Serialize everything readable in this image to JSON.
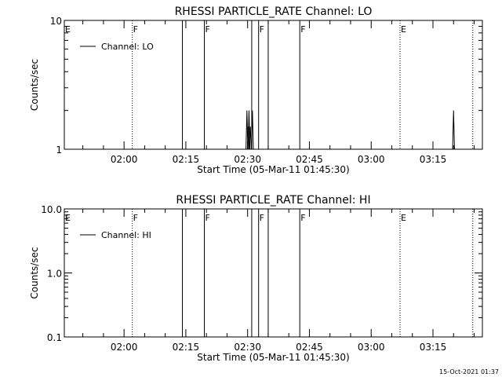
{
  "footer": {
    "timestamp": "15-Oct-2021 01:37"
  },
  "chart_data": [
    {
      "type": "line",
      "title": "RHESSI PARTICLE_RATE Channel: LO",
      "xlabel": "Start Time (05-Mar-11 01:45:30)",
      "ylabel": "Counts/sec",
      "y_scale": "log",
      "ylim": [
        1,
        10
      ],
      "y_ticks": [
        "1",
        "10"
      ],
      "x_start": "01:45:30",
      "x_end": "03:27:00",
      "x_ticks": [
        "02:00",
        "02:15",
        "02:30",
        "02:45",
        "03:00",
        "03:15"
      ],
      "legend": {
        "placement": "top-left",
        "entries": [
          "Channel: LO"
        ]
      },
      "grid": false,
      "markers": [
        {
          "time": "01:45:30",
          "label": "E",
          "style": "none"
        },
        {
          "time": "02:02:00",
          "label": "F",
          "style": "dotted"
        },
        {
          "time": "02:14:10",
          "label": "",
          "style": "solid"
        },
        {
          "time": "02:19:30",
          "label": "F",
          "style": "solid"
        },
        {
          "time": "02:31:00",
          "label": "",
          "style": "solid"
        },
        {
          "time": "02:32:40",
          "label": "F",
          "style": "solid"
        },
        {
          "time": "02:35:00",
          "label": "",
          "style": "solid"
        },
        {
          "time": "02:42:40",
          "label": "F",
          "style": "solid"
        },
        {
          "time": "03:07:00",
          "label": "E",
          "style": "dotted"
        },
        {
          "time": "03:24:40",
          "label": "",
          "style": "dotted"
        }
      ],
      "series": [
        {
          "name": "Channel: LO",
          "spikes": [
            {
              "time": "02:29:50",
              "value": 2
            },
            {
              "time": "02:30:10",
              "value": 1.5
            },
            {
              "time": "02:30:20",
              "value": 2
            },
            {
              "time": "02:30:40",
              "value": 1.5
            },
            {
              "time": "02:31:10",
              "value": 2
            },
            {
              "time": "03:20:00",
              "value": 2
            }
          ]
        }
      ]
    },
    {
      "type": "line",
      "title": "RHESSI PARTICLE_RATE Channel: HI",
      "xlabel": "Start Time (05-Mar-11 01:45:30)",
      "ylabel": "Counts/sec",
      "y_scale": "log",
      "ylim": [
        0.1,
        10
      ],
      "y_ticks": [
        "0.1",
        "1.0",
        "10.0"
      ],
      "x_start": "01:45:30",
      "x_end": "03:27:00",
      "x_ticks": [
        "02:00",
        "02:15",
        "02:30",
        "02:45",
        "03:00",
        "03:15"
      ],
      "legend": {
        "placement": "top-left",
        "entries": [
          "Channel: HI"
        ]
      },
      "grid": false,
      "markers": [
        {
          "time": "01:45:30",
          "label": "E",
          "style": "none"
        },
        {
          "time": "02:02:00",
          "label": "F",
          "style": "dotted"
        },
        {
          "time": "02:14:10",
          "label": "",
          "style": "solid"
        },
        {
          "time": "02:19:30",
          "label": "F",
          "style": "solid"
        },
        {
          "time": "02:31:00",
          "label": "",
          "style": "solid"
        },
        {
          "time": "02:32:40",
          "label": "F",
          "style": "solid"
        },
        {
          "time": "02:35:00",
          "label": "",
          "style": "solid"
        },
        {
          "time": "02:42:40",
          "label": "F",
          "style": "solid"
        },
        {
          "time": "03:07:00",
          "label": "E",
          "style": "dotted"
        },
        {
          "time": "03:24:40",
          "label": "",
          "style": "dotted"
        }
      ],
      "series": [
        {
          "name": "Channel: HI",
          "spikes": []
        }
      ]
    }
  ]
}
